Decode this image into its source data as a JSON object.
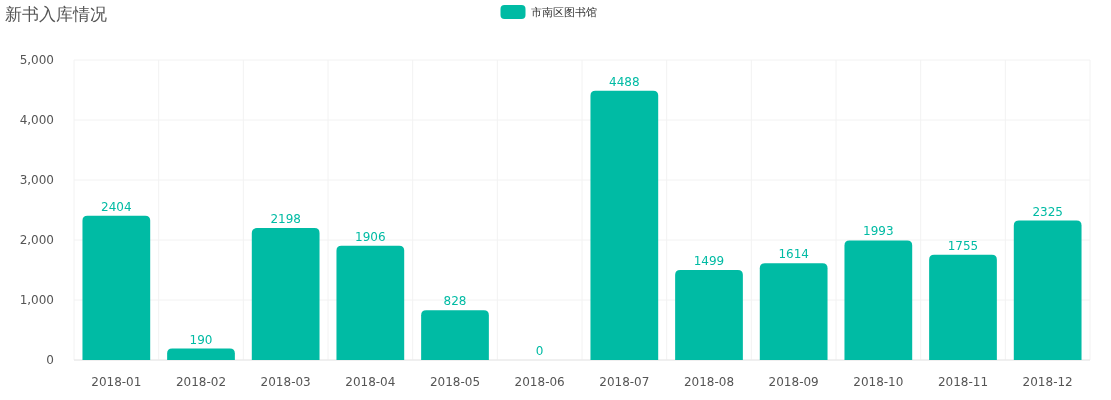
{
  "chart_data": {
    "type": "bar",
    "title": "新书入库情况",
    "categories": [
      "2018-01",
      "2018-02",
      "2018-03",
      "2018-04",
      "2018-05",
      "2018-06",
      "2018-07",
      "2018-08",
      "2018-09",
      "2018-10",
      "2018-11",
      "2018-12"
    ],
    "series": [
      {
        "name": "市南区图书馆",
        "color": "#00bba4",
        "values": [
          2404,
          190,
          2198,
          1906,
          828,
          0,
          4488,
          1499,
          1614,
          1993,
          1755,
          2325
        ]
      }
    ],
    "ylim": [
      0,
      5000
    ],
    "yticks": [
      {
        "value": 0,
        "label": "0"
      },
      {
        "value": 1000,
        "label": "1,000"
      },
      {
        "value": 2000,
        "label": "2,000"
      },
      {
        "value": 3000,
        "label": "3,000"
      },
      {
        "value": 4000,
        "label": "4,000"
      },
      {
        "value": 5000,
        "label": "5,000"
      }
    ],
    "grid": true,
    "legend": "top",
    "data_labels": true
  }
}
